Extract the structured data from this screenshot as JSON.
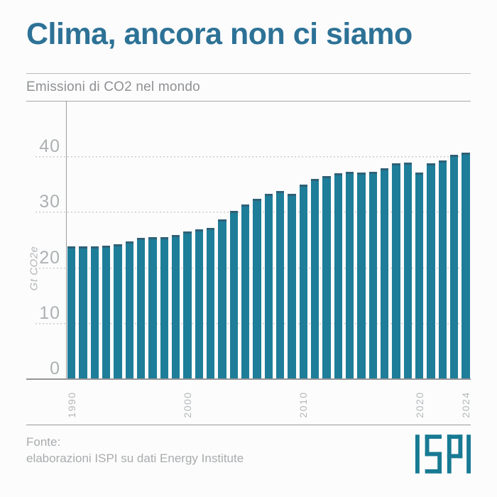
{
  "header": {
    "title": "Clima, ancora non ci siamo",
    "subtitle": "Emissioni di CO2 nel mondo"
  },
  "chart_data": {
    "type": "bar",
    "title": "Emissioni di CO2 nel mondo",
    "ylabel": "Gt CO2e",
    "xlabel": "",
    "ylim": [
      0,
      50
    ],
    "grid": "horizontal-dotted",
    "legend": "none",
    "categories": [
      "1990",
      "1991",
      "1992",
      "1993",
      "1994",
      "1995",
      "1996",
      "1997",
      "1998",
      "1999",
      "2000",
      "2001",
      "2002",
      "2003",
      "2004",
      "2005",
      "2006",
      "2007",
      "2008",
      "2009",
      "2010",
      "2011",
      "2012",
      "2013",
      "2014",
      "2015",
      "2016",
      "2017",
      "2018",
      "2019",
      "2020",
      "2021",
      "2022",
      "2023",
      "2024"
    ],
    "values": [
      23.8,
      23.8,
      23.8,
      23.9,
      24.2,
      24.7,
      25.3,
      25.5,
      25.5,
      25.8,
      26.5,
      26.8,
      27.1,
      28.7,
      30.2,
      31.3,
      32.3,
      33.3,
      33.8,
      33.2,
      34.9,
      35.9,
      36.4,
      36.9,
      37.2,
      37.1,
      37.2,
      37.9,
      38.7,
      38.9,
      37.1,
      38.8,
      39.3,
      40.3,
      40.7
    ],
    "yticks": [
      {
        "value": 0,
        "label": "0"
      },
      {
        "value": 10,
        "label": "10"
      },
      {
        "value": 20,
        "label": "20"
      },
      {
        "value": 30,
        "label": "30"
      },
      {
        "value": 40,
        "label": "40"
      }
    ],
    "xticks_shown": [
      {
        "index": 0,
        "label": "1990"
      },
      {
        "index": 10,
        "label": "2000"
      },
      {
        "index": 20,
        "label": "2010"
      },
      {
        "index": 30,
        "label": "2020"
      },
      {
        "index": 34,
        "label": "2024"
      }
    ]
  },
  "footer": {
    "source_line1": "Fonte:",
    "source_line2": "elaborazioni ISPI su dati Energy Institute",
    "logo_text": "ISPI"
  },
  "colors": {
    "background": "#fcfcfc",
    "accent_title": "#2d7296",
    "bar": "#1e7d99",
    "bar_cap": "#2f6076",
    "logo": "#187a93"
  }
}
